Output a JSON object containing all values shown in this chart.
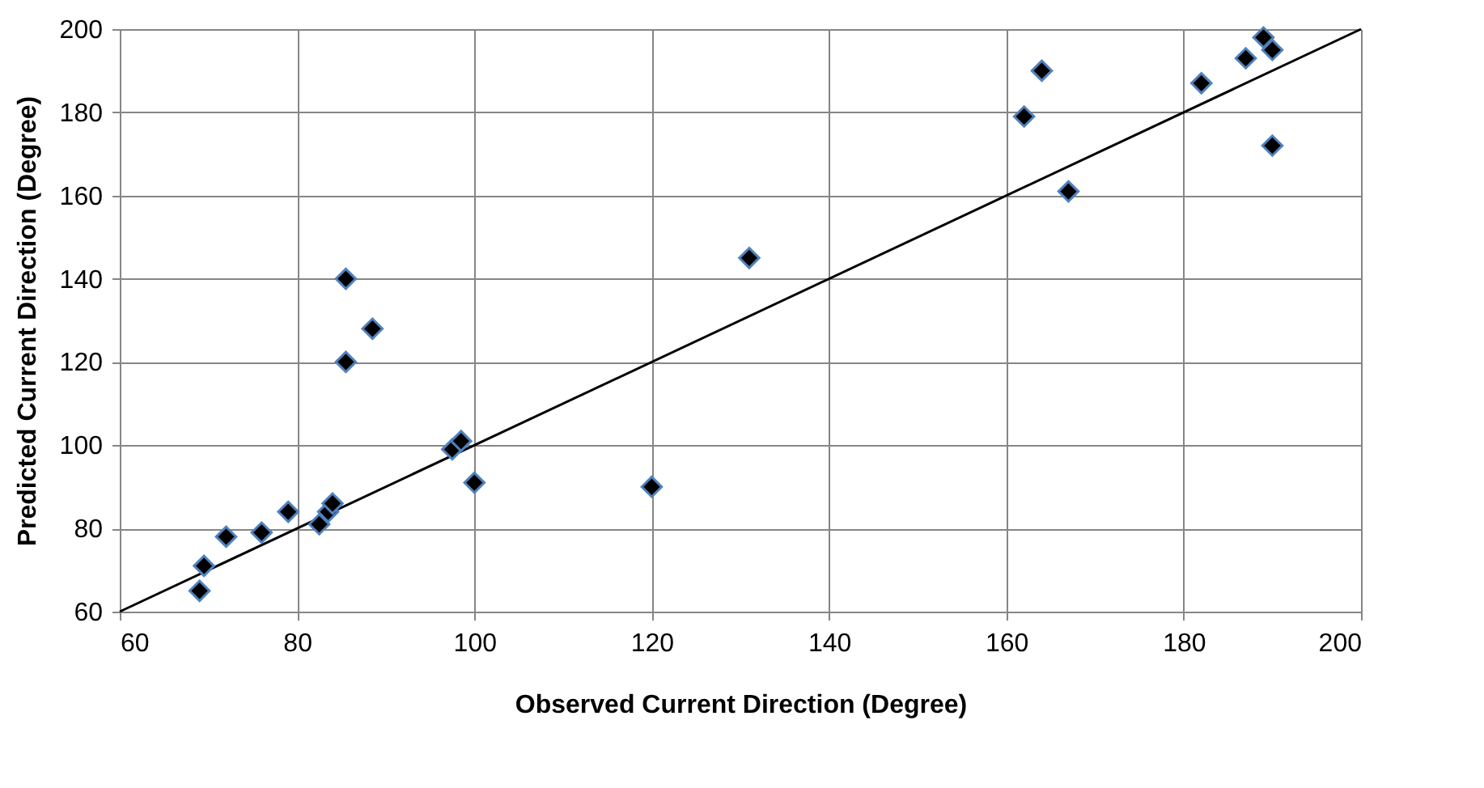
{
  "chart_data": {
    "type": "scatter",
    "xlabel": "Observed Current Direction (Degree)",
    "ylabel": "Predicted Current Direction (Degree)",
    "xlim": [
      60,
      200
    ],
    "xticks": [
      60,
      80,
      100,
      120,
      140,
      160,
      180,
      200
    ],
    "ylim": [
      60,
      200
    ],
    "yticks": [
      60,
      80,
      100,
      120,
      140,
      160,
      180,
      200
    ],
    "grid": true,
    "series": [
      {
        "marker": "diamond",
        "color": "#000000",
        "x": [
          69,
          69.5,
          72,
          76,
          79,
          82.5,
          83.5,
          84,
          85.5,
          85.5,
          88.5,
          97.5,
          98.5,
          100,
          120,
          131,
          162,
          164,
          167,
          182,
          187,
          189,
          190,
          190
        ],
        "values": [
          65,
          71,
          78,
          79,
          84,
          81,
          84,
          86,
          140,
          120,
          128,
          99,
          101,
          91,
          90,
          145,
          179,
          190,
          161,
          187,
          193,
          198,
          195,
          172
        ]
      },
      {
        "type": "line",
        "color": "#000000",
        "x": [
          60,
          200
        ],
        "values": [
          60,
          200
        ]
      }
    ]
  }
}
